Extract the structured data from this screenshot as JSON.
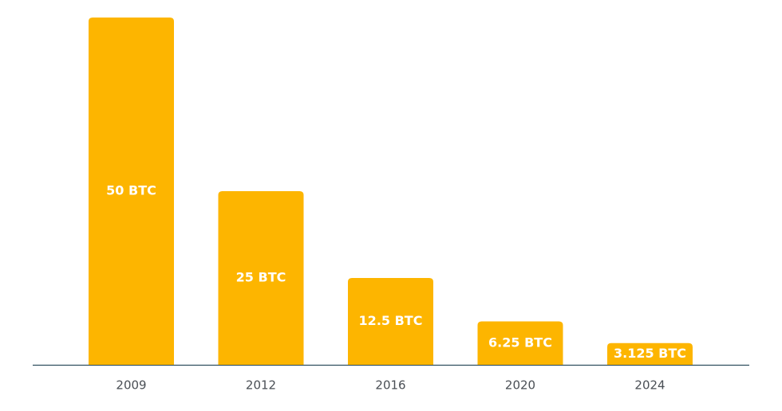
{
  "chart_data": {
    "type": "bar",
    "categories": [
      "2009",
      "2012",
      "2016",
      "2020",
      "2024"
    ],
    "values": [
      50,
      25,
      12.5,
      6.25,
      3.125
    ],
    "value_labels": [
      "50 BTC",
      "25 BTC",
      "12.5 BTC",
      "6.25 BTC",
      "3.125 BTC"
    ],
    "color": "#fdb500"
  }
}
